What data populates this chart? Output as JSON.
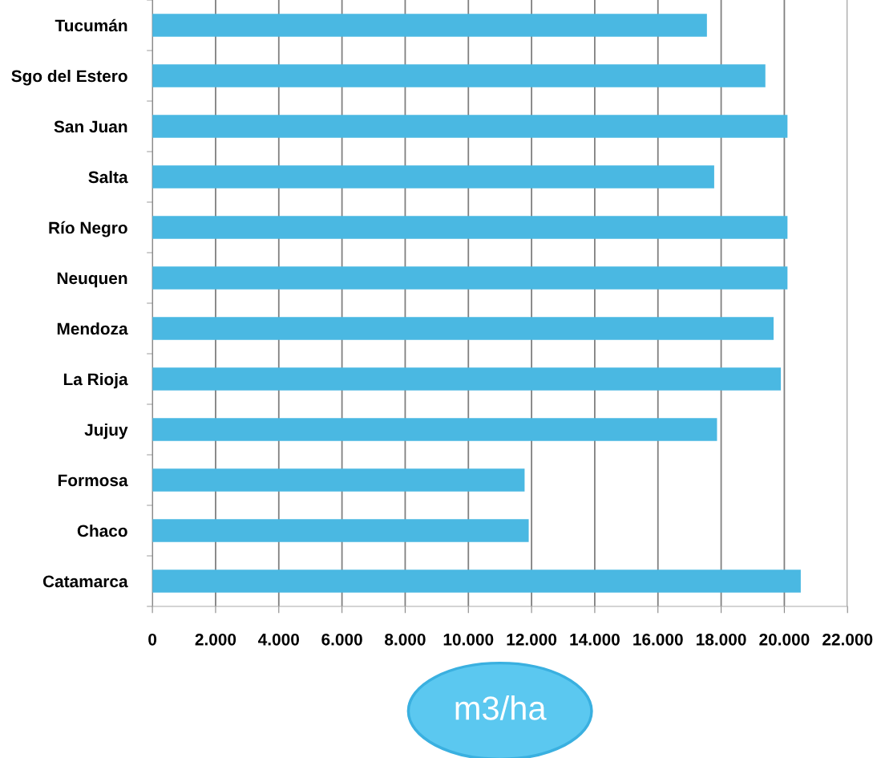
{
  "chart_data": {
    "type": "bar",
    "orientation": "horizontal",
    "xlabel": "m3/ha",
    "categories": [
      "Tucumán",
      "Sgo del Estero",
      "San Juan",
      "Salta",
      "Río Negro",
      "Neuquen",
      "Mendoza",
      "La Rioja",
      "Jujuy",
      "Formosa",
      "Chaco",
      "Catamarca"
    ],
    "values": [
      17550,
      19400,
      20100,
      17780,
      20100,
      20100,
      19660,
      19890,
      17870,
      11780,
      11910,
      20520
    ],
    "color": "#4ab8e2",
    "xlim": [
      0,
      22000
    ],
    "xticks": [
      0,
      {
        "value": 2000,
        "label": "2.000"
      },
      {
        "value": 4000,
        "label": "4.000"
      },
      {
        "value": 6000,
        "label": "6.000"
      },
      {
        "value": 8000,
        "label": "8.000"
      },
      {
        "value": 10000,
        "label": "10.000"
      },
      {
        "value": 12000,
        "label": "12.000"
      },
      {
        "value": 14000,
        "label": "14.000"
      },
      {
        "value": 16000,
        "label": "16.000"
      },
      {
        "value": 18000,
        "label": "18.000"
      },
      {
        "value": 20000,
        "label": "20.000"
      },
      {
        "value": 22000,
        "label": "22.000"
      }
    ],
    "grid": "x"
  }
}
